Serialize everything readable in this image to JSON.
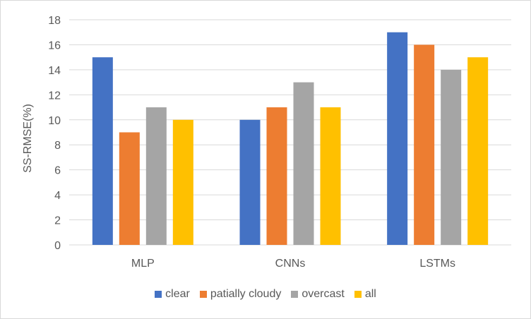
{
  "chart_data": {
    "type": "bar",
    "title": "",
    "xlabel": "",
    "ylabel": "SS-RMSE(%)",
    "ylim": [
      0,
      18
    ],
    "yticks": [
      0,
      2,
      4,
      6,
      8,
      10,
      12,
      14,
      16,
      18
    ],
    "categories": [
      "MLP",
      "CNNs",
      "LSTMs"
    ],
    "series": [
      {
        "name": "clear",
        "color": "#4472C4",
        "values": [
          15,
          10,
          17
        ]
      },
      {
        "name": "patially cloudy",
        "color": "#ED7D31",
        "values": [
          9,
          11,
          16
        ]
      },
      {
        "name": "overcast",
        "color": "#A5A5A5",
        "values": [
          11,
          13,
          14
        ]
      },
      {
        "name": "all",
        "color": "#FFC000",
        "values": [
          10,
          11,
          15
        ]
      }
    ],
    "grid": true,
    "legend_position": "bottom"
  }
}
